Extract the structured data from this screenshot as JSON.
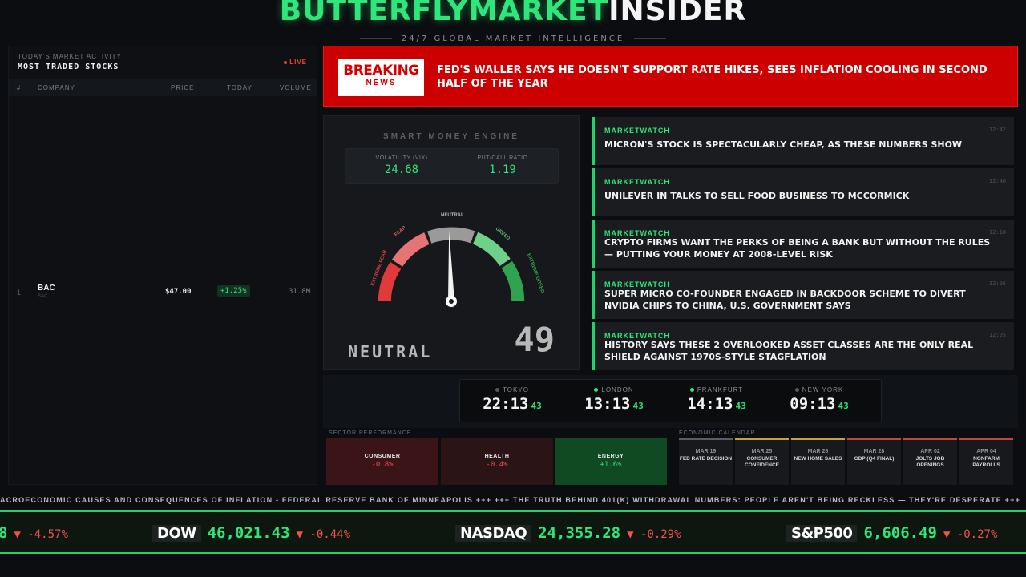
{
  "header": {
    "brand_green": "BUTTERFLYMARKET",
    "brand_white": "INSIDER",
    "tagline": "24/7 GLOBAL MARKET INTELLIGENCE"
  },
  "stocks_panel": {
    "subtitle": "TODAY'S MARKET ACTIVITY",
    "title": "MOST TRADED STOCKS",
    "live_label": "LIVE",
    "columns": [
      "#",
      "COMPANY",
      "PRICE",
      "TODAY",
      "VOLUME"
    ],
    "rows": [
      {
        "rank": "1",
        "ticker": "BAC",
        "ticker_small": "BAC",
        "price": "$47.00",
        "change": "+1.25%",
        "volume": "31.8M"
      }
    ]
  },
  "breaking": {
    "badge_top": "BREAKING",
    "badge_bottom": "NEWS",
    "headline": "FED'S WALLER SAYS HE DOESN'T SUPPORT RATE HIKES, SEES INFLATION COOLING IN SECOND HALF OF THE YEAR"
  },
  "engine": {
    "title": "SMART MONEY ENGINE",
    "vix_label": "VOLATILITY (VIX)",
    "vix_value": "24.68",
    "pcr_label": "PUT/CALL RATIO",
    "pcr_value": "1.19",
    "zone_labels": {
      "extreme_fear": "EXTREME FEAR",
      "fear": "FEAR",
      "neutral": "NEUTRAL",
      "greed": "GREED",
      "extreme_greed": "EXTREME GREED"
    },
    "sentiment": "NEUTRAL",
    "score": "49",
    "score_value": 49,
    "colors": {
      "extreme_fear": "#e03a3a",
      "fear": "#e67474",
      "neutral": "#9a9a9a",
      "greed": "#6fd08a",
      "extreme_greed": "#2fa34f"
    }
  },
  "news": [
    {
      "source": "MARKETWATCH",
      "time": "12:42",
      "headline": "MICRON'S STOCK IS SPECTACULARLY CHEAP, AS THESE NUMBERS SHOW"
    },
    {
      "source": "MARKETWATCH",
      "time": "12:40",
      "headline": "UNILEVER IN TALKS TO SELL FOOD BUSINESS TO MCCORMICK"
    },
    {
      "source": "MARKETWATCH",
      "time": "12:10",
      "headline": "CRYPTO FIRMS WANT THE PERKS OF BEING A BANK BUT WITHOUT THE RULES — PUTTING YOUR MONEY AT 2008-LEVEL RISK"
    },
    {
      "source": "MARKETWATCH",
      "time": "12:06",
      "headline": "SUPER MICRO CO-FOUNDER ENGAGED IN BACKDOOR SCHEME TO DIVERT NVIDIA CHIPS TO CHINA, U.S. GOVERNMENT SAYS"
    },
    {
      "source": "MARKETWATCH",
      "time": "12:05",
      "headline": "HISTORY SAYS THESE 2 OVERLOOKED ASSET CLASSES ARE THE ONLY REAL SHIELD AGAINST 1970S-STYLE STAGFLATION"
    }
  ],
  "clocks": [
    {
      "city": "TOKYO",
      "time": "22:13",
      "seconds": "43",
      "status_color": "#555a60"
    },
    {
      "city": "LONDON",
      "time": "13:13",
      "seconds": "43",
      "status_color": "#2ee67a"
    },
    {
      "city": "FRANKFURT",
      "time": "14:13",
      "seconds": "43",
      "status_color": "#2ee67a"
    },
    {
      "city": "NEW YORK",
      "time": "09:13",
      "seconds": "43",
      "status_color": "#555a60"
    }
  ],
  "sectors": {
    "label": "SECTOR PERFORMANCE",
    "items": [
      {
        "name": "CONSUMER",
        "change": "-0.8%",
        "bg": "#3a1416",
        "color": "#f05252"
      },
      {
        "name": "HEALTH",
        "change": "-0.4%",
        "bg": "#2a1416",
        "color": "#f05252"
      },
      {
        "name": "ENERGY",
        "change": "+1.6%",
        "bg": "#0f4a22",
        "color": "#2ee67a"
      }
    ]
  },
  "calendar": {
    "label": "ECONOMIC CALENDAR",
    "items": [
      {
        "date": "MAR 19",
        "event": "FED RATE DECISION",
        "accent": "#5a5d62"
      },
      {
        "date": "MAR 25",
        "event": "CONSUMER CONFIDENCE",
        "accent": "#c9a13a"
      },
      {
        "date": "MAR 26",
        "event": "NEW HOME SALES",
        "accent": "#c9a13a"
      },
      {
        "date": "MAR 28",
        "event": "GDP (Q4 FINAL)",
        "accent": "#c9453a"
      },
      {
        "date": "APR 02",
        "event": "JOLTS JOB OPENINGS",
        "accent": "#c9453a"
      },
      {
        "date": "APR 04",
        "event": "NONFARM PAYROLLS",
        "accent": "#c9453a"
      }
    ]
  },
  "news_ticker": "ACROECONOMIC CAUSES AND CONSEQUENCES OF INFLATION - FEDERAL RESERVE BANK OF MINNEAPOLIS +++ +++ THE TRUTH BEHIND 401(K) WITHDRAWAL NUMBERS: PEOPLE AREN'T BEING RECKLESS — THEY'RE DESPERATE +++",
  "quotes": [
    {
      "name": "",
      "value": "8",
      "change": "▼ -4.57%"
    },
    {
      "name": "DOW",
      "value": "46,021.43",
      "change": "▼ -0.44%"
    },
    {
      "name": "NASDAQ",
      "value": "24,355.28",
      "change": "▼ -0.29%"
    },
    {
      "name": "S&P500",
      "value": "6,606.49",
      "change": "▼ -0.27%"
    }
  ]
}
